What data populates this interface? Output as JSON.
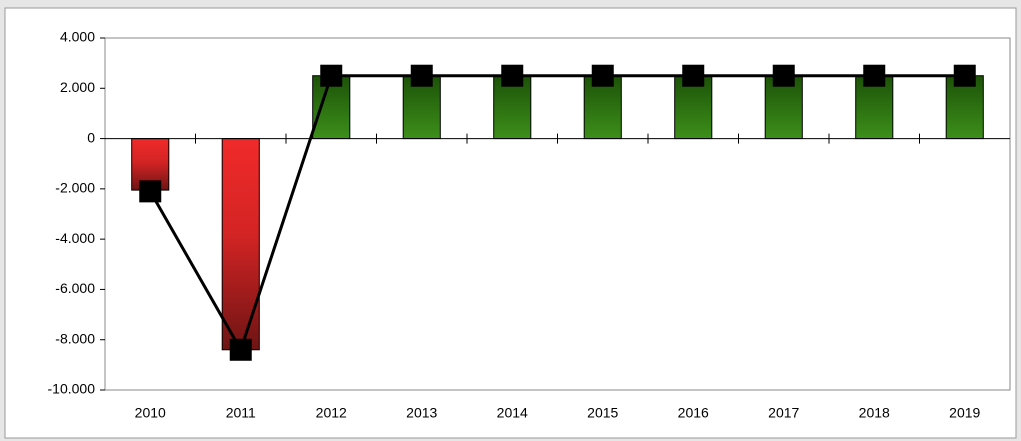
{
  "chart_data": {
    "type": "bar",
    "categories": [
      "2010",
      "2011",
      "2012",
      "2013",
      "2014",
      "2015",
      "2016",
      "2017",
      "2018",
      "2019"
    ],
    "series": [
      {
        "type": "bar",
        "color": "#2e7d12",
        "negative_color": "#e82a2a",
        "values": [
          -2050,
          -8400,
          2500,
          2500,
          2500,
          2500,
          2500,
          2500,
          2500,
          2500
        ]
      },
      {
        "type": "line",
        "color": "#000000",
        "values": [
          -2100,
          -8400,
          2500,
          2500,
          2500,
          2500,
          2500,
          2500,
          2500,
          2500
        ]
      }
    ],
    "ylim": [
      -10000,
      4000
    ],
    "yticks": [
      {
        "value": -10000,
        "label": "-10.000"
      },
      {
        "value": -8000,
        "label": "-8.000"
      },
      {
        "value": -6000,
        "label": "-6.000"
      },
      {
        "value": -4000,
        "label": "-4.000"
      },
      {
        "value": -2000,
        "label": "-2.000"
      },
      0,
      {
        "value": 2000,
        "label": "2.000"
      },
      {
        "value": 4000,
        "label": "4.000"
      }
    ],
    "grid": false
  }
}
